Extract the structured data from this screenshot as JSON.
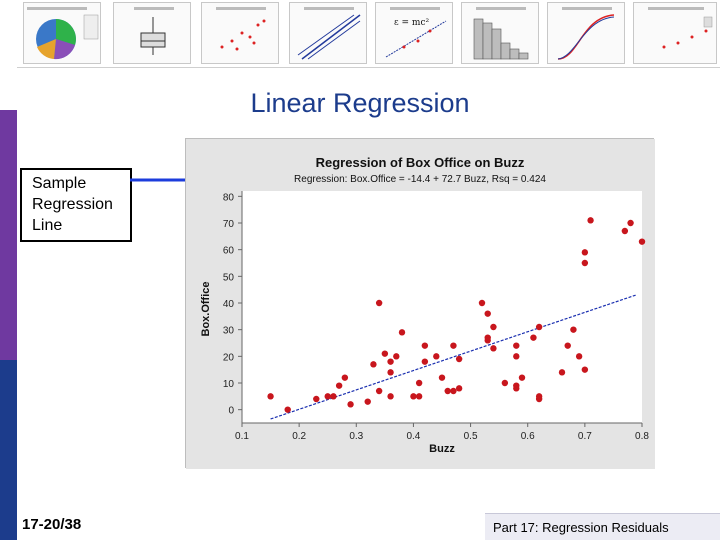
{
  "slide": {
    "title": "Linear Regression",
    "callout_line1": "Sample",
    "callout_line2": "Regression",
    "callout_line3": "Line",
    "slide_number": "17-20/38",
    "footer": "Part 17: Regression Residuals"
  },
  "thumbnails": [
    {
      "name": "thumb-pie-chart-icon"
    },
    {
      "name": "thumb-boxplot-icon"
    },
    {
      "name": "thumb-scatterplot-icon"
    },
    {
      "name": "thumb-probability-plot-icon"
    },
    {
      "name": "thumb-regression-plot-icon"
    },
    {
      "name": "thumb-histogram-icon"
    },
    {
      "name": "thumb-cdf-plot-icon"
    },
    {
      "name": "thumb-scatter-bar-icon"
    }
  ],
  "colors": {
    "title": "#1c3c8c",
    "sidebar_purple": "#6f39a0",
    "sidebar_blue": "#1c3c8c",
    "arrow": "#1c3cdc",
    "points": "#c8161d",
    "fit_line": "#1a2fb0",
    "frame_bg": "#e4e4e4"
  },
  "chart_data": {
    "type": "scatter",
    "title": "Regression of Box Office on Buzz",
    "subtitle": "Regression: Box.Office = -14.4 + 72.7 Buzz, Rsq = 0.424",
    "xlabel": "Buzz",
    "ylabel": "Box.Office",
    "xlim": [
      0.1,
      0.8
    ],
    "ylim": [
      -5,
      82
    ],
    "xticks": [
      "0.1",
      "0.2",
      "0.3",
      "0.4",
      "0.5",
      "0.6",
      "0.7",
      "0.8"
    ],
    "yticks": [
      "0",
      "10",
      "20",
      "30",
      "40",
      "50",
      "60",
      "70",
      "80"
    ],
    "grid": false,
    "fit_line": {
      "intercept": -14.4,
      "slope": 72.7,
      "x_range": [
        0.15,
        0.79
      ]
    },
    "points": [
      {
        "x": 0.15,
        "y": 5
      },
      {
        "x": 0.18,
        "y": 0
      },
      {
        "x": 0.23,
        "y": 4
      },
      {
        "x": 0.25,
        "y": 5
      },
      {
        "x": 0.26,
        "y": 5
      },
      {
        "x": 0.27,
        "y": 9
      },
      {
        "x": 0.28,
        "y": 12
      },
      {
        "x": 0.29,
        "y": 2
      },
      {
        "x": 0.32,
        "y": 3
      },
      {
        "x": 0.33,
        "y": 17
      },
      {
        "x": 0.34,
        "y": 7
      },
      {
        "x": 0.34,
        "y": 40
      },
      {
        "x": 0.35,
        "y": 21
      },
      {
        "x": 0.36,
        "y": 14
      },
      {
        "x": 0.36,
        "y": 18
      },
      {
        "x": 0.37,
        "y": 20
      },
      {
        "x": 0.36,
        "y": 5
      },
      {
        "x": 0.38,
        "y": 29
      },
      {
        "x": 0.4,
        "y": 5
      },
      {
        "x": 0.41,
        "y": 10
      },
      {
        "x": 0.41,
        "y": 5
      },
      {
        "x": 0.42,
        "y": 18
      },
      {
        "x": 0.42,
        "y": 24
      },
      {
        "x": 0.44,
        "y": 20
      },
      {
        "x": 0.45,
        "y": 12
      },
      {
        "x": 0.46,
        "y": 7
      },
      {
        "x": 0.47,
        "y": 7
      },
      {
        "x": 0.47,
        "y": 24
      },
      {
        "x": 0.48,
        "y": 8
      },
      {
        "x": 0.48,
        "y": 19
      },
      {
        "x": 0.52,
        "y": 40
      },
      {
        "x": 0.53,
        "y": 36
      },
      {
        "x": 0.53,
        "y": 27
      },
      {
        "x": 0.53,
        "y": 26
      },
      {
        "x": 0.54,
        "y": 31
      },
      {
        "x": 0.54,
        "y": 23
      },
      {
        "x": 0.56,
        "y": 10
      },
      {
        "x": 0.58,
        "y": 24
      },
      {
        "x": 0.58,
        "y": 20
      },
      {
        "x": 0.58,
        "y": 9
      },
      {
        "x": 0.58,
        "y": 8
      },
      {
        "x": 0.59,
        "y": 12
      },
      {
        "x": 0.61,
        "y": 27
      },
      {
        "x": 0.62,
        "y": 5
      },
      {
        "x": 0.62,
        "y": 4
      },
      {
        "x": 0.62,
        "y": 31
      },
      {
        "x": 0.66,
        "y": 14
      },
      {
        "x": 0.67,
        "y": 24
      },
      {
        "x": 0.68,
        "y": 30
      },
      {
        "x": 0.69,
        "y": 20
      },
      {
        "x": 0.7,
        "y": 15
      },
      {
        "x": 0.7,
        "y": 59
      },
      {
        "x": 0.7,
        "y": 55
      },
      {
        "x": 0.71,
        "y": 71
      },
      {
        "x": 0.77,
        "y": 67
      },
      {
        "x": 0.78,
        "y": 70
      },
      {
        "x": 0.8,
        "y": 63
      }
    ]
  }
}
